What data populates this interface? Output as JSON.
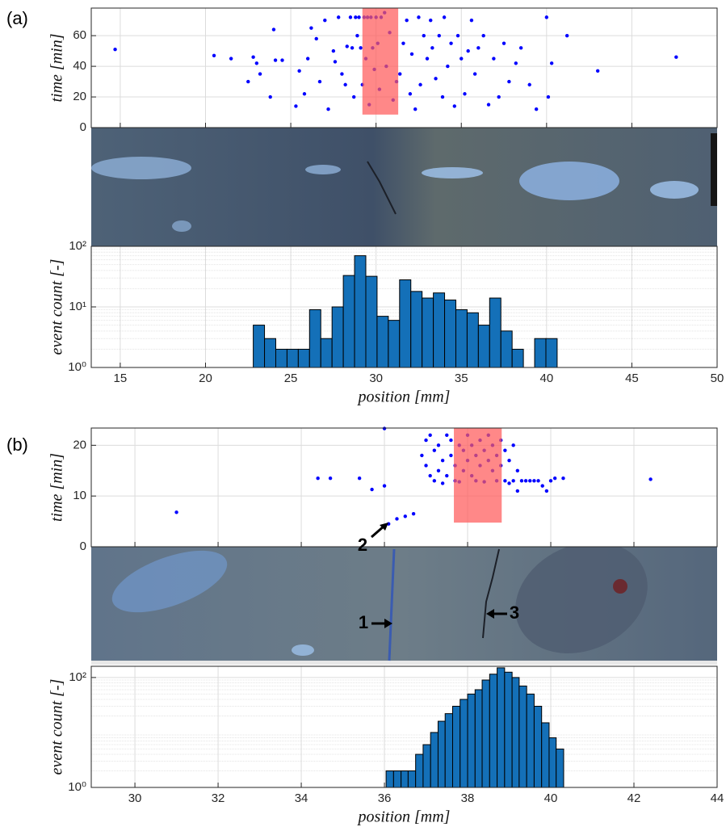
{
  "panel_labels": [
    "(a)",
    "(b)"
  ],
  "chart_data": [
    {
      "type": "scatter",
      "ylabel": "time [min]",
      "color": "#0000ff",
      "xlim": [
        13.3,
        50
      ],
      "ylim": [
        0,
        78
      ],
      "xticks": [
        15,
        20,
        25,
        30,
        35,
        40,
        45,
        50
      ],
      "yticks": [
        0,
        20,
        40,
        60
      ],
      "grid": true,
      "show_xtick_labels": false,
      "highlight": {
        "xlim": [
          29.2,
          31.3
        ],
        "ylim": [
          8.5,
          78
        ],
        "color": "#ff5a5a"
      },
      "x": [
        14.7,
        20.5,
        21.5,
        22.5,
        22.8,
        23.0,
        23.2,
        23.8,
        24.0,
        24.1,
        24.5,
        25.3,
        25.5,
        25.8,
        26.0,
        26.2,
        26.5,
        26.7,
        27.0,
        27.2,
        27.5,
        27.6,
        27.8,
        28.0,
        28.2,
        28.3,
        28.5,
        28.6,
        28.7,
        28.8,
        28.9,
        29.0,
        29.1,
        29.2,
        29.3,
        29.4,
        29.5,
        29.6,
        29.7,
        29.8,
        29.9,
        30.0,
        30.1,
        30.2,
        30.3,
        30.5,
        30.6,
        30.8,
        31.0,
        31.2,
        31.4,
        31.6,
        31.8,
        32.0,
        32.1,
        32.3,
        32.5,
        32.6,
        32.8,
        33.0,
        33.2,
        33.3,
        33.5,
        33.7,
        33.9,
        34.0,
        34.2,
        34.4,
        34.6,
        34.8,
        35.0,
        35.2,
        35.4,
        35.6,
        35.8,
        36.0,
        36.3,
        36.6,
        36.9,
        37.2,
        37.5,
        37.8,
        38.2,
        38.5,
        39.0,
        39.4,
        40.0,
        40.1,
        40.3,
        41.2,
        43.0,
        47.6
      ],
      "y": [
        51,
        47,
        45,
        30,
        46,
        42,
        35,
        20,
        64,
        44,
        44,
        14,
        37,
        22,
        45,
        65,
        58,
        30,
        70,
        12,
        50,
        43,
        72,
        35,
        28,
        53,
        72,
        52,
        20,
        72,
        60,
        72,
        52,
        28,
        72,
        45,
        72,
        15,
        72,
        52,
        38,
        72,
        55,
        25,
        72,
        75,
        40,
        62,
        18,
        30,
        35,
        55,
        70,
        22,
        48,
        12,
        72,
        28,
        60,
        45,
        70,
        52,
        32,
        60,
        20,
        72,
        40,
        55,
        14,
        60,
        45,
        22,
        50,
        70,
        35,
        52,
        60,
        15,
        45,
        20,
        55,
        30,
        42,
        52,
        28,
        12,
        72,
        20,
        42,
        60,
        37,
        46
      ]
    },
    {
      "type": "histogram",
      "ylabel": "event count [-]",
      "xlabel": "position [mm]",
      "color": "#1470b8",
      "xlim": [
        13.3,
        50
      ],
      "ylim": [
        1,
        100
      ],
      "log_y": true,
      "grid": true,
      "minor_grid": true,
      "xticks": [
        15,
        20,
        25,
        30,
        35,
        40,
        45,
        50
      ],
      "yticks": [
        {
          "value": 1,
          "label": "10⁰"
        },
        {
          "value": 10,
          "label": "10¹"
        },
        {
          "value": 100,
          "label": "10²"
        }
      ],
      "bins": [
        22.8,
        23.46,
        24.12,
        24.78,
        25.44,
        26.1,
        26.76,
        27.42,
        28.08,
        28.74,
        29.4,
        30.06,
        30.72,
        31.38,
        32.04,
        32.7,
        33.36,
        34.02,
        34.68,
        35.34,
        36.0,
        36.66,
        37.32,
        37.98,
        38.64,
        39.3,
        39.96,
        40.62
      ],
      "counts": [
        5,
        3,
        2,
        2,
        2,
        9,
        3,
        10,
        33,
        70,
        32,
        7,
        6,
        28,
        18,
        14,
        17,
        13,
        9,
        8,
        5,
        14,
        4,
        2,
        0,
        3,
        3
      ]
    },
    {
      "type": "scatter",
      "ylabel": "time [min]",
      "color": "#0000ff",
      "xlim": [
        28.95,
        44
      ],
      "ylim": [
        0,
        23.4
      ],
      "xticks": [
        30,
        32,
        34,
        36,
        38,
        40,
        42,
        44
      ],
      "yticks": [
        0,
        10,
        20
      ],
      "grid": true,
      "show_xtick_labels": false,
      "annotations": [
        "1",
        "2",
        "3"
      ],
      "highlight": {
        "xlim": [
          37.67,
          38.82
        ],
        "ylim": [
          4.76,
          23.4
        ],
        "color": "#ff5a5a"
      },
      "x": [
        31.0,
        34.4,
        34.7,
        35.4,
        35.7,
        36.0,
        36.0,
        36.1,
        36.3,
        36.5,
        36.7,
        36.9,
        37.0,
        37.0,
        37.1,
        37.1,
        37.2,
        37.2,
        37.3,
        37.3,
        37.4,
        37.4,
        37.5,
        37.5,
        37.6,
        37.6,
        37.7,
        37.7,
        37.8,
        37.8,
        37.9,
        37.9,
        38.0,
        38.0,
        38.1,
        38.1,
        38.2,
        38.2,
        38.3,
        38.3,
        38.4,
        38.4,
        38.5,
        38.5,
        38.6,
        38.6,
        38.7,
        38.7,
        38.8,
        38.8,
        38.9,
        38.9,
        39.0,
        39.0,
        39.1,
        39.1,
        39.2,
        39.2,
        39.3,
        39.4,
        39.5,
        39.6,
        39.7,
        39.8,
        39.9,
        40.0,
        40.1,
        40.3,
        42.4
      ],
      "y": [
        6.8,
        13.5,
        13.5,
        13.5,
        11.3,
        12.0,
        23.3,
        4.5,
        5.5,
        6.0,
        6.5,
        18,
        21,
        16,
        22,
        14,
        19,
        13,
        20,
        15,
        17,
        12.5,
        22,
        14,
        18,
        21,
        16,
        13,
        20,
        12.8,
        19,
        15,
        22,
        17,
        14,
        20,
        18,
        13,
        21,
        16,
        19,
        12.8,
        17,
        22,
        15,
        20,
        18,
        13,
        21,
        16,
        13,
        19,
        17,
        12.5,
        20,
        13,
        15,
        11,
        13,
        13,
        13,
        13,
        13,
        12,
        11,
        13,
        13.5,
        13.5,
        13.3
      ]
    },
    {
      "type": "histogram",
      "ylabel": "event count [-]",
      "xlabel": "position [mm]",
      "color": "#1470b8",
      "xlim": [
        28.95,
        44
      ],
      "ylim": [
        1,
        160
      ],
      "log_y": true,
      "grid": true,
      "minor_grid": true,
      "xticks": [
        30,
        32,
        34,
        36,
        38,
        40,
        42,
        44
      ],
      "yticks": [
        {
          "value": 1,
          "label": "10⁰"
        },
        {
          "value": 100,
          "label": "10²"
        }
      ],
      "bins": [
        36.04,
        36.22,
        36.4,
        36.57,
        36.75,
        36.93,
        37.11,
        37.29,
        37.46,
        37.64,
        37.82,
        38.0,
        38.18,
        38.35,
        38.53,
        38.71,
        38.89,
        39.07,
        39.24,
        39.42,
        39.6,
        39.78,
        39.96,
        40.13,
        40.31
      ],
      "counts": [
        2,
        2,
        2,
        2,
        4,
        6,
        10,
        16,
        22,
        30,
        40,
        50,
        60,
        90,
        115,
        150,
        125,
        100,
        70,
        50,
        30,
        15,
        8,
        5
      ]
    }
  ]
}
